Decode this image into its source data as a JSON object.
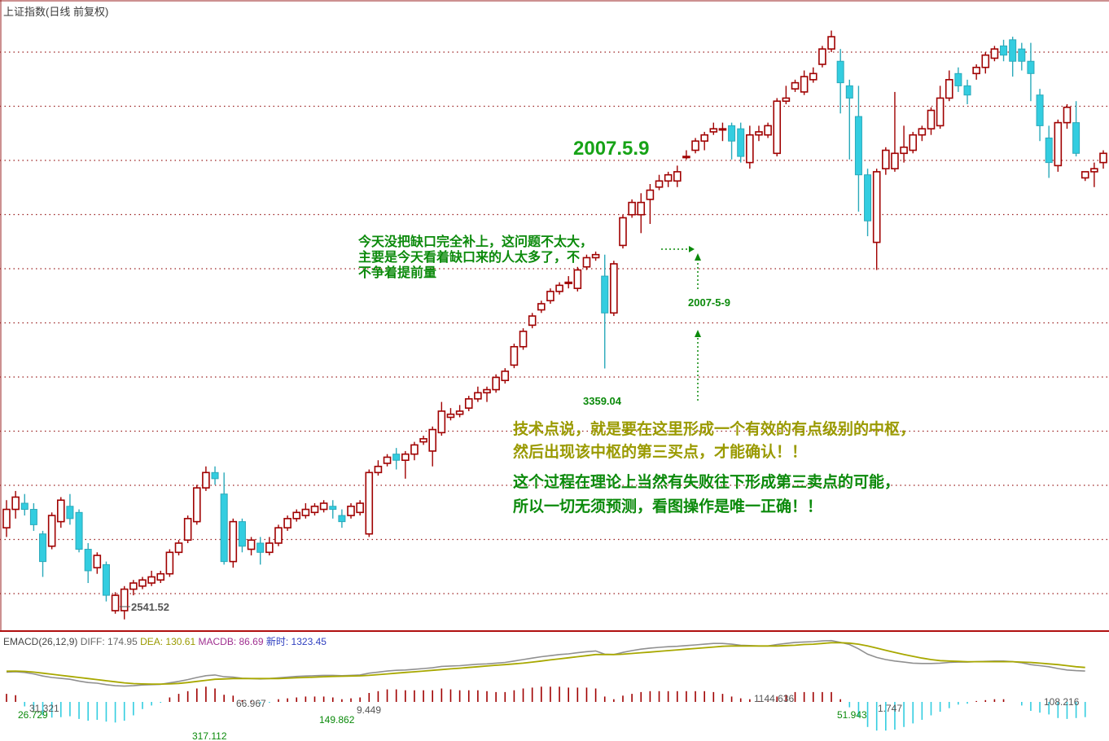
{
  "window_title": "上证指数(日线 前复权)",
  "colors": {
    "up": "#a00000",
    "down": "#33cde0",
    "grid": "#9a2020",
    "diff": "#909090",
    "dea": "#a8a800",
    "macd_up": "#a00000",
    "macd_down": "#33cde0"
  },
  "annotations": {
    "big_date": "2007.5.9",
    "gap_note": [
      "今天没把缺口完全补上，这问题不太大，",
      "主要是今天看着缺口来的人太多了，不",
      "不争着提前量"
    ],
    "date_mark": "2007-5-9",
    "low_mark": "3359.04",
    "start_low": "2541.52",
    "tech_note": [
      "技术点说，就是要在这里形成一个有效的有点级别的中枢，",
      "然后出现该中枢的第三买点，才能确认！！"
    ],
    "theory_note": [
      "这个过程在理论上当然有失败往下形成第三卖点的可能，",
      "所以一切无须预测，看图操作是唯一正确！！"
    ]
  },
  "macd_header": {
    "name": "EMACD(26,12,9)",
    "diff": "DIFF: 174.95",
    "dea": "DEA: 130.61",
    "macd": "MACDB: 86.69",
    "extra": "新时: 1323.45"
  },
  "macd_labels": [
    "26.729",
    "31.321",
    "66.967",
    "317.112",
    "149.862",
    "9.449",
    "1144.636",
    "51.943",
    "1.747",
    "108.216"
  ],
  "chart_data": {
    "type": "candlestick",
    "title": "上证指数(日线 前复权)",
    "candles": [
      [
        2840,
        2900,
        2930,
        2810
      ],
      [
        2900,
        2940,
        2960,
        2870
      ],
      [
        2920,
        2900,
        2950,
        2880
      ],
      [
        2900,
        2850,
        2920,
        2830
      ],
      [
        2820,
        2730,
        2830,
        2680
      ],
      [
        2780,
        2880,
        2890,
        2770
      ],
      [
        2860,
        2930,
        2940,
        2840
      ],
      [
        2910,
        2870,
        2950,
        2850
      ],
      [
        2890,
        2770,
        2900,
        2760
      ],
      [
        2770,
        2700,
        2790,
        2660
      ],
      [
        2710,
        2750,
        2760,
        2690
      ],
      [
        2720,
        2620,
        2730,
        2600
      ],
      [
        2570,
        2620,
        2630,
        2560
      ],
      [
        2570,
        2640,
        2650,
        2541.52
      ],
      [
        2640,
        2660,
        2670,
        2620
      ],
      [
        2650,
        2670,
        2680,
        2640
      ],
      [
        2660,
        2680,
        2700,
        2650
      ],
      [
        2670,
        2690,
        2700,
        2660
      ],
      [
        2690,
        2760,
        2770,
        2680
      ],
      [
        2760,
        2790,
        2800,
        2750
      ],
      [
        2800,
        2870,
        2880,
        2790
      ],
      [
        2860,
        2970,
        2980,
        2850
      ],
      [
        2970,
        3020,
        3040,
        2960
      ],
      [
        3020,
        3000,
        3040,
        2980
      ],
      [
        2950,
        2730,
        3020,
        2720
      ],
      [
        2730,
        2860,
        2870,
        2710
      ],
      [
        2860,
        2780,
        2870,
        2760
      ],
      [
        2770,
        2800,
        2810,
        2750
      ],
      [
        2790,
        2760,
        2810,
        2720
      ],
      [
        2760,
        2790,
        2810,
        2750
      ],
      [
        2790,
        2840,
        2850,
        2780
      ],
      [
        2840,
        2870,
        2880,
        2830
      ],
      [
        2870,
        2890,
        2900,
        2860
      ],
      [
        2880,
        2900,
        2920,
        2870
      ],
      [
        2890,
        2910,
        2920,
        2880
      ],
      [
        2900,
        2920,
        2930,
        2890
      ],
      [
        2910,
        2900,
        2930,
        2870
      ],
      [
        2880,
        2860,
        2900,
        2840
      ],
      [
        2880,
        2910,
        2920,
        2870
      ],
      [
        2890,
        2920,
        2930,
        2880
      ],
      [
        2820,
        3020,
        3030,
        2810
      ],
      [
        3020,
        3040,
        3060,
        3010
      ],
      [
        3050,
        3070,
        3080,
        3040
      ],
      [
        3080,
        3060,
        3100,
        3030
      ],
      [
        3060,
        3080,
        3090,
        3000
      ],
      [
        3080,
        3110,
        3120,
        3060
      ],
      [
        3120,
        3130,
        3140,
        3110
      ],
      [
        3090,
        3160,
        3170,
        3040
      ],
      [
        3150,
        3220,
        3250,
        3140
      ],
      [
        3200,
        3210,
        3230,
        3190
      ],
      [
        3210,
        3220,
        3240,
        3200
      ],
      [
        3230,
        3260,
        3270,
        3220
      ],
      [
        3260,
        3280,
        3300,
        3250
      ],
      [
        3280,
        3290,
        3300,
        3250
      ],
      [
        3290,
        3330,
        3340,
        3280
      ],
      [
        3320,
        3350,
        3360,
        3310
      ],
      [
        3370,
        3430,
        3440,
        3360
      ],
      [
        3430,
        3480,
        3490,
        3420
      ],
      [
        3500,
        3530,
        3540,
        3490
      ],
      [
        3550,
        3570,
        3580,
        3540
      ],
      [
        3580,
        3610,
        3620,
        3570
      ],
      [
        3610,
        3630,
        3640,
        3600
      ],
      [
        3640,
        3640,
        3660,
        3620
      ],
      [
        3620,
        3680,
        3690,
        3610
      ],
      [
        3690,
        3720,
        3730,
        3680
      ],
      [
        3720,
        3730,
        3740,
        3710
      ],
      [
        3660,
        3540,
        3730,
        3359.04
      ],
      [
        3540,
        3700,
        3710,
        3530
      ],
      [
        3760,
        3850,
        3860,
        3750
      ],
      [
        3860,
        3900,
        3910,
        3850
      ],
      [
        3860,
        3900,
        3930,
        3800
      ],
      [
        3910,
        3940,
        3960,
        3830
      ],
      [
        3950,
        3970,
        3990,
        3940
      ],
      [
        3970,
        3990,
        4000,
        3950
      ],
      [
        3970,
        4000,
        4020,
        3950
      ],
      [
        4050,
        4050,
        4070,
        4040
      ],
      [
        4070,
        4100,
        4110,
        4060
      ],
      [
        4100,
        4120,
        4130,
        4070
      ],
      [
        4130,
        4140,
        4160,
        4120
      ],
      [
        4140,
        4140,
        4160,
        4100
      ],
      [
        4150,
        4100,
        4160,
        4040
      ],
      [
        4140,
        4050,
        4160,
        4030
      ],
      [
        4030,
        4120,
        4150,
        4010
      ],
      [
        4120,
        4130,
        4150,
        4100
      ],
      [
        4120,
        4150,
        4160,
        4110
      ],
      [
        4060,
        4230,
        4240,
        4050
      ],
      [
        4230,
        4240,
        4280,
        4220
      ],
      [
        4270,
        4290,
        4300,
        4260
      ],
      [
        4260,
        4310,
        4330,
        4250
      ],
      [
        4300,
        4320,
        4340,
        4290
      ],
      [
        4350,
        4400,
        4410,
        4340
      ],
      [
        4400,
        4440,
        4460,
        4390
      ],
      [
        4360,
        4290,
        4400,
        4190
      ],
      [
        4280,
        4240,
        4300,
        4040
      ],
      [
        4180,
        3990,
        4280,
        3870
      ],
      [
        3990,
        3840,
        4010,
        3790
      ],
      [
        3770,
        4000,
        4010,
        3680
      ],
      [
        4010,
        4070,
        4080,
        3990
      ],
      [
        4010,
        4060,
        4260,
        4000
      ],
      [
        4060,
        4080,
        4150,
        4030
      ],
      [
        4070,
        4120,
        4130,
        4060
      ],
      [
        4120,
        4140,
        4150,
        4100
      ],
      [
        4140,
        4200,
        4210,
        4120
      ],
      [
        4150,
        4240,
        4280,
        4140
      ],
      [
        4240,
        4300,
        4330,
        4230
      ],
      [
        4320,
        4280,
        4340,
        4260
      ],
      [
        4280,
        4250,
        4300,
        4220
      ],
      [
        4320,
        4340,
        4350,
        4300
      ],
      [
        4340,
        4380,
        4390,
        4320
      ],
      [
        4370,
        4400,
        4410,
        4360
      ],
      [
        4410,
        4380,
        4430,
        4360
      ],
      [
        4430,
        4360,
        4440,
        4310
      ],
      [
        4400,
        4360,
        4420,
        4330
      ],
      [
        4360,
        4320,
        4420,
        4230
      ],
      [
        4250,
        4150,
        4270,
        4100
      ],
      [
        4110,
        4030,
        4150,
        3980
      ],
      [
        4020,
        4160,
        4170,
        4000
      ],
      [
        4160,
        4210,
        4220,
        4140
      ],
      [
        4160,
        4060,
        4230,
        4050
      ],
      [
        3980,
        4000,
        4000,
        3970
      ],
      [
        4000,
        4010,
        4030,
        3950
      ],
      [
        4030,
        4060,
        4070,
        4010
      ]
    ],
    "price_range": [
      2530,
      4480
    ],
    "macd": [
      [
        30,
        35,
        18
      ],
      [
        32,
        36,
        15
      ],
      [
        28,
        34,
        -10
      ],
      [
        20,
        30,
        -18
      ],
      [
        8,
        24,
        -30
      ],
      [
        0,
        18,
        -35
      ],
      [
        -5,
        12,
        -34
      ],
      [
        -10,
        6,
        -32
      ],
      [
        -20,
        0,
        -38
      ],
      [
        -28,
        -6,
        -42
      ],
      [
        -32,
        -12,
        -40
      ],
      [
        -40,
        -18,
        -44
      ],
      [
        -46,
        -24,
        -46
      ],
      [
        -48,
        -30,
        -42
      ],
      [
        -46,
        -34,
        -30
      ],
      [
        -42,
        -36,
        -16
      ],
      [
        -40,
        -37,
        -8
      ],
      [
        -38,
        -37,
        -2
      ],
      [
        -30,
        -36,
        10
      ],
      [
        -22,
        -33,
        18
      ],
      [
        -12,
        -28,
        24
      ],
      [
        0,
        -22,
        30
      ],
      [
        10,
        -16,
        34
      ],
      [
        14,
        -10,
        30
      ],
      [
        4,
        -8,
        16
      ],
      [
        2,
        -6,
        14
      ],
      [
        -4,
        -6,
        4
      ],
      [
        -6,
        -6,
        2
      ],
      [
        -8,
        -6,
        -4
      ],
      [
        -6,
        -6,
        -2
      ],
      [
        -2,
        -6,
        6
      ],
      [
        2,
        -4,
        8
      ],
      [
        6,
        -2,
        10
      ],
      [
        8,
        0,
        12
      ],
      [
        10,
        2,
        12
      ],
      [
        12,
        4,
        12
      ],
      [
        12,
        6,
        10
      ],
      [
        10,
        7,
        6
      ],
      [
        12,
        8,
        8
      ],
      [
        14,
        9,
        10
      ],
      [
        24,
        12,
        20
      ],
      [
        30,
        16,
        24
      ],
      [
        36,
        20,
        28
      ],
      [
        40,
        24,
        28
      ],
      [
        42,
        28,
        26
      ],
      [
        46,
        32,
        26
      ],
      [
        50,
        36,
        26
      ],
      [
        54,
        40,
        26
      ],
      [
        62,
        44,
        30
      ],
      [
        64,
        48,
        28
      ],
      [
        66,
        52,
        26
      ],
      [
        70,
        56,
        26
      ],
      [
        74,
        60,
        26
      ],
      [
        76,
        64,
        24
      ],
      [
        80,
        68,
        22
      ],
      [
        84,
        72,
        22
      ],
      [
        92,
        76,
        26
      ],
      [
        100,
        80,
        30
      ],
      [
        108,
        86,
        32
      ],
      [
        116,
        92,
        34
      ],
      [
        122,
        98,
        34
      ],
      [
        128,
        104,
        34
      ],
      [
        132,
        110,
        32
      ],
      [
        138,
        116,
        32
      ],
      [
        144,
        122,
        32
      ],
      [
        148,
        128,
        30
      ],
      [
        130,
        128,
        12
      ],
      [
        128,
        128,
        6
      ],
      [
        140,
        130,
        14
      ],
      [
        150,
        134,
        18
      ],
      [
        158,
        138,
        22
      ],
      [
        164,
        142,
        24
      ],
      [
        168,
        146,
        24
      ],
      [
        172,
        150,
        24
      ],
      [
        174,
        154,
        24
      ],
      [
        178,
        158,
        24
      ],
      [
        182,
        162,
        24
      ],
      [
        186,
        166,
        24
      ],
      [
        190,
        170,
        22
      ],
      [
        190,
        174,
        18
      ],
      [
        186,
        176,
        12
      ],
      [
        180,
        176,
        8
      ],
      [
        178,
        176,
        6
      ],
      [
        176,
        176,
        2
      ],
      [
        176,
        176,
        2
      ],
      [
        184,
        176,
        12
      ],
      [
        190,
        178,
        16
      ],
      [
        196,
        180,
        22
      ],
      [
        198,
        184,
        22
      ],
      [
        200,
        186,
        22
      ],
      [
        204,
        190,
        22
      ],
      [
        206,
        194,
        22
      ],
      [
        196,
        194,
        6
      ],
      [
        184,
        192,
        -12
      ],
      [
        160,
        186,
        -34
      ],
      [
        130,
        176,
        -56
      ],
      [
        112,
        164,
        -64
      ],
      [
        100,
        152,
        -64
      ],
      [
        92,
        140,
        -62
      ],
      [
        86,
        128,
        -56
      ],
      [
        80,
        118,
        -48
      ],
      [
        78,
        108,
        -40
      ],
      [
        78,
        100,
        -30
      ],
      [
        80,
        94,
        -22
      ],
      [
        84,
        92,
        -14
      ],
      [
        86,
        90,
        -6
      ],
      [
        86,
        88,
        -4
      ],
      [
        88,
        88,
        2
      ],
      [
        90,
        88,
        4
      ],
      [
        92,
        88,
        6
      ],
      [
        92,
        88,
        6
      ],
      [
        88,
        88,
        0
      ],
      [
        82,
        86,
        -8
      ],
      [
        72,
        84,
        -20
      ],
      [
        66,
        80,
        -24
      ],
      [
        60,
        76,
        -28
      ],
      [
        50,
        72,
        -36
      ],
      [
        42,
        66,
        -38
      ],
      [
        38,
        60,
        -36
      ],
      [
        36,
        56,
        -34
      ]
    ]
  }
}
